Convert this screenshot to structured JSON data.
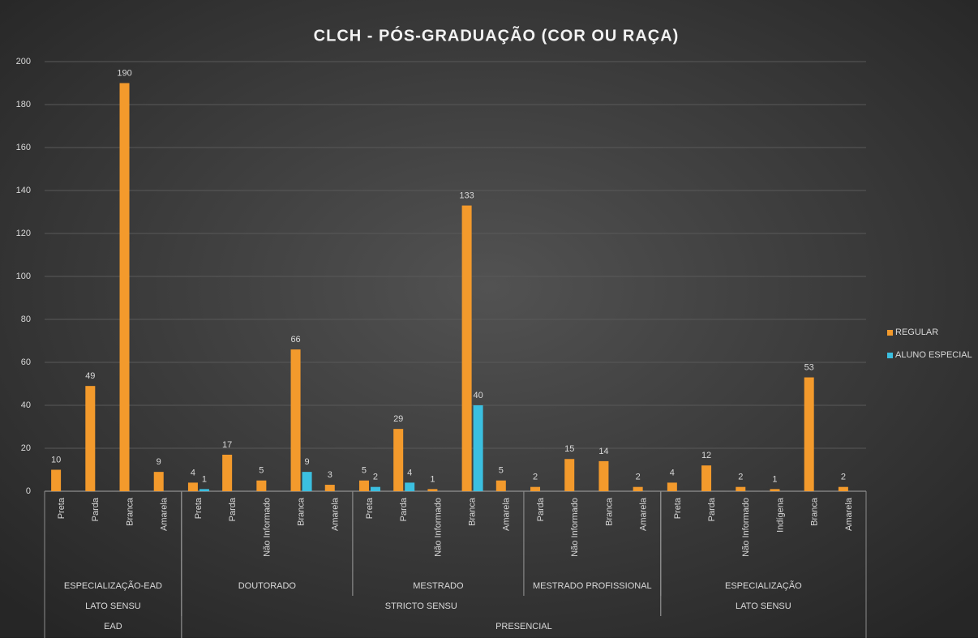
{
  "chart_data": {
    "type": "bar",
    "title": "CLCH - PÓS-GRADUAÇÃO  (COR OU RAÇA)",
    "categories": [
      "Preta",
      "Parda",
      "Branca",
      "Amarela",
      "Preta",
      "Parda",
      "Não Informado",
      "Branca",
      "Amarela",
      "Preta",
      "Parda",
      "Não Informado",
      "Branca",
      "Amarela",
      "Parda",
      "Não Informado",
      "Branca",
      "Amarela",
      "Preta",
      "Parda",
      "Não Informado",
      "Indígena",
      "Branca",
      "Amarela"
    ],
    "category_groups": [
      [
        {
          "label": "ESPECIALIZAÇÃO-EAD",
          "count": 4
        },
        {
          "label": "DOUTORADO",
          "count": 5
        },
        {
          "label": "MESTRADO",
          "count": 5
        },
        {
          "label": "MESTRADO PROFISSIONAL",
          "count": 4
        },
        {
          "label": "ESPECIALIZAÇÃO",
          "count": 6
        }
      ],
      [
        {
          "label": "LATO SENSU",
          "count": 4
        },
        {
          "label": "STRICTO SENSU",
          "count": 14
        },
        {
          "label": "LATO SENSU",
          "count": 6
        }
      ],
      [
        {
          "label": "EAD",
          "count": 4
        },
        {
          "label": "PRESENCIAL",
          "count": 20
        }
      ]
    ],
    "series": [
      {
        "name": "REGULAR",
        "color": "#f39a2c",
        "values": [
          10,
          49,
          190,
          9,
          4,
          17,
          5,
          66,
          3,
          5,
          29,
          1,
          133,
          5,
          2,
          15,
          14,
          2,
          4,
          12,
          2,
          1,
          53,
          2
        ]
      },
      {
        "name": "ALUNO ESPECIAL",
        "color": "#3bbfe0",
        "values": [
          null,
          null,
          null,
          null,
          1,
          null,
          null,
          9,
          null,
          2,
          4,
          null,
          40,
          null,
          null,
          null,
          null,
          null,
          null,
          null,
          null,
          null,
          null,
          null
        ]
      }
    ],
    "ylim": [
      0,
      200
    ],
    "yticks": [
      0,
      20,
      40,
      60,
      80,
      100,
      120,
      140,
      160,
      180,
      200
    ],
    "grid": true,
    "legend": "right"
  }
}
